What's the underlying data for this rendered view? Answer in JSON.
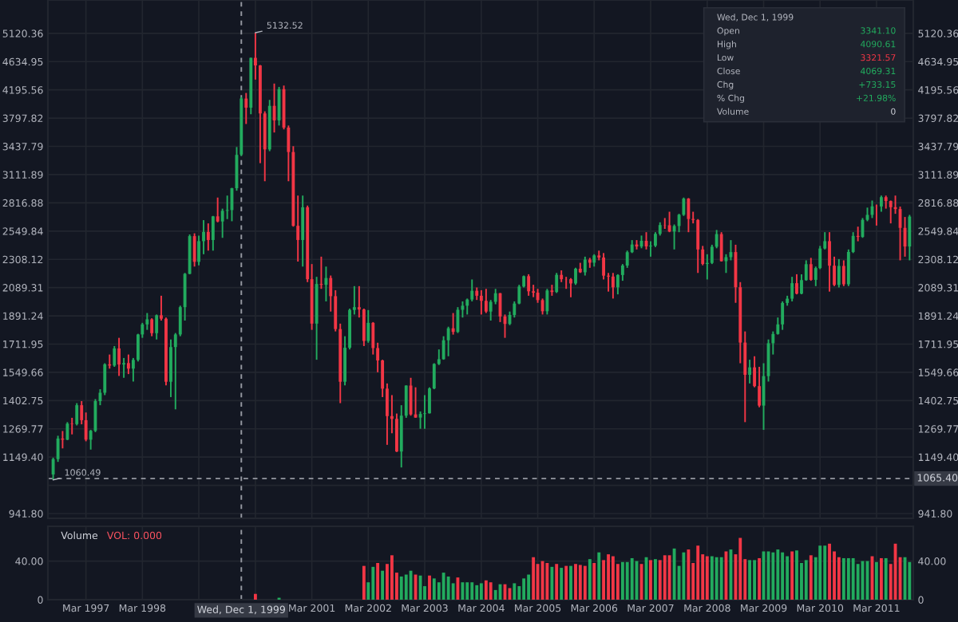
{
  "chart_data": [
    {
      "type": "candlestick",
      "log": true,
      "grid": true,
      "tick_labels": "y",
      "x": [
        "1996-08",
        "1996-09",
        "1996-10",
        "1996-11",
        "1996-12",
        "1997-01",
        "1997-02",
        "1997-03",
        "1997-04",
        "1997-05",
        "1997-06",
        "1997-07",
        "1997-08",
        "1997-09",
        "1997-10",
        "1997-11",
        "1997-12",
        "1998-01",
        "1998-02",
        "1998-03",
        "1998-04",
        "1998-05",
        "1998-06",
        "1998-07",
        "1998-08",
        "1998-09",
        "1998-10",
        "1998-11",
        "1998-12",
        "1999-01",
        "1999-02",
        "1999-03",
        "1999-04",
        "1999-05",
        "1999-06",
        "1999-07",
        "1999-08",
        "1999-09",
        "1999-10",
        "1999-11",
        "1999-12",
        "2000-01",
        "2000-02",
        "2000-03",
        "2000-04",
        "2000-05",
        "2000-06",
        "2000-07",
        "2000-08",
        "2000-09",
        "2000-10",
        "2000-11",
        "2000-12",
        "2001-01",
        "2001-02",
        "2001-03",
        "2001-04",
        "2001-05",
        "2001-06",
        "2001-07",
        "2001-08",
        "2001-09",
        "2001-10",
        "2001-11",
        "2001-12",
        "2002-01",
        "2002-02",
        "2002-03",
        "2002-04",
        "2002-05",
        "2002-06",
        "2002-07",
        "2002-08",
        "2002-09",
        "2002-10",
        "2002-11",
        "2002-12",
        "2003-01",
        "2003-02",
        "2003-03",
        "2003-04",
        "2003-05",
        "2003-06",
        "2003-07",
        "2003-08",
        "2003-09",
        "2003-10",
        "2003-11",
        "2003-12",
        "2004-01",
        "2004-02",
        "2004-03",
        "2004-04",
        "2004-05",
        "2004-06",
        "2004-07",
        "2004-08",
        "2004-09",
        "2004-10",
        "2004-11",
        "2004-12",
        "2005-01",
        "2005-02",
        "2005-03",
        "2005-04",
        "2005-05",
        "2005-06",
        "2005-07",
        "2005-08",
        "2005-09",
        "2005-10",
        "2005-11",
        "2005-12",
        "2006-01",
        "2006-02",
        "2006-03",
        "2006-04",
        "2006-05",
        "2006-06",
        "2006-07",
        "2006-08",
        "2006-09",
        "2006-10",
        "2006-11",
        "2006-12",
        "2007-01",
        "2007-02",
        "2007-03",
        "2007-04",
        "2007-05",
        "2007-06",
        "2007-07",
        "2007-08",
        "2007-09",
        "2007-10",
        "2007-11",
        "2007-12",
        "2008-01",
        "2008-02",
        "2008-03",
        "2008-04",
        "2008-05",
        "2008-06",
        "2008-07",
        "2008-08",
        "2008-09",
        "2008-10",
        "2008-11",
        "2008-12",
        "2009-01",
        "2009-02",
        "2009-03",
        "2009-04",
        "2009-05",
        "2009-06",
        "2009-07",
        "2009-08",
        "2009-09",
        "2009-10",
        "2009-11",
        "2009-12",
        "2010-01",
        "2010-02",
        "2010-03",
        "2010-04",
        "2010-05",
        "2010-06",
        "2010-07",
        "2010-08",
        "2010-09",
        "2010-10",
        "2010-11",
        "2010-12",
        "2011-01",
        "2011-02",
        "2011-03",
        "2011-04",
        "2011-05",
        "2011-06",
        "2011-07",
        "2011-08",
        "2011-09",
        "2011-10"
      ],
      "ohlc": [
        [
          1081,
          1147,
          1060.49,
          1141
        ],
        [
          1141,
          1239,
          1130,
          1227
        ],
        [
          1227,
          1260,
          1185,
          1222
        ],
        [
          1222,
          1300,
          1220,
          1293
        ],
        [
          1293,
          1320,
          1245,
          1291
        ],
        [
          1291,
          1390,
          1285,
          1380
        ],
        [
          1380,
          1400,
          1290,
          1309
        ],
        [
          1309,
          1345,
          1215,
          1222
        ],
        [
          1222,
          1265,
          1180,
          1261
        ],
        [
          1261,
          1410,
          1255,
          1400
        ],
        [
          1400,
          1460,
          1380,
          1442
        ],
        [
          1442,
          1600,
          1430,
          1594
        ],
        [
          1594,
          1650,
          1570,
          1587
        ],
        [
          1587,
          1700,
          1580,
          1686
        ],
        [
          1686,
          1750,
          1530,
          1593
        ],
        [
          1593,
          1630,
          1520,
          1601
        ],
        [
          1601,
          1650,
          1540,
          1570
        ],
        [
          1570,
          1630,
          1500,
          1619
        ],
        [
          1619,
          1775,
          1610,
          1771
        ],
        [
          1771,
          1845,
          1750,
          1835
        ],
        [
          1835,
          1910,
          1800,
          1868
        ],
        [
          1868,
          1875,
          1760,
          1779
        ],
        [
          1779,
          1900,
          1740,
          1895
        ],
        [
          1895,
          2030,
          1860,
          1872
        ],
        [
          1872,
          1880,
          1480,
          1499
        ],
        [
          1499,
          1740,
          1420,
          1694
        ],
        [
          1694,
          1780,
          1360,
          1771
        ],
        [
          1771,
          1960,
          1760,
          1950
        ],
        [
          1950,
          2200,
          1860,
          2193
        ],
        [
          2193,
          2520,
          2190,
          2505
        ],
        [
          2505,
          2530,
          2250,
          2288
        ],
        [
          2288,
          2510,
          2260,
          2461
        ],
        [
          2461,
          2650,
          2350,
          2542
        ],
        [
          2542,
          2620,
          2380,
          2471
        ],
        [
          2471,
          2690,
          2380,
          2686
        ],
        [
          2686,
          2870,
          2630,
          2638
        ],
        [
          2638,
          2760,
          2490,
          2739
        ],
        [
          2739,
          2890,
          2660,
          2746
        ],
        [
          2746,
          2970,
          2640,
          2966
        ],
        [
          2966,
          3430,
          2940,
          3336
        ],
        [
          3341.1,
          4090.61,
          3321.57,
          4069.31
        ],
        [
          4069,
          4150,
          3720,
          3940
        ],
        [
          3940,
          4700,
          3850,
          4697
        ],
        [
          4697,
          5132.52,
          4350,
          4573
        ],
        [
          4573,
          4580,
          3240,
          3861
        ],
        [
          3861,
          3890,
          3040,
          3401
        ],
        [
          3401,
          4050,
          3380,
          3966
        ],
        [
          3966,
          4290,
          3610,
          3767
        ],
        [
          3767,
          4240,
          3700,
          4206
        ],
        [
          4206,
          4260,
          3650,
          3673
        ],
        [
          3673,
          3700,
          3040,
          3370
        ],
        [
          3370,
          3440,
          2590,
          2598
        ],
        [
          2598,
          2890,
          2290,
          2471
        ],
        [
          2471,
          2890,
          2250,
          2773
        ],
        [
          2773,
          2790,
          2130,
          2152
        ],
        [
          2152,
          2270,
          1800,
          1840
        ],
        [
          1840,
          2170,
          1620,
          2116
        ],
        [
          2116,
          2330,
          2080,
          2110
        ],
        [
          2110,
          2250,
          1990,
          2161
        ],
        [
          2161,
          2180,
          1920,
          2027
        ],
        [
          2027,
          2070,
          1790,
          1805
        ],
        [
          1805,
          1840,
          1390,
          1499
        ],
        [
          1499,
          1760,
          1480,
          1690
        ],
        [
          1690,
          1940,
          1680,
          1931
        ],
        [
          1931,
          2100,
          1900,
          1950
        ],
        [
          1950,
          2100,
          1880,
          1934
        ],
        [
          1934,
          1940,
          1700,
          1731
        ],
        [
          1731,
          1930,
          1720,
          1845
        ],
        [
          1845,
          1850,
          1650,
          1688
        ],
        [
          1688,
          1720,
          1550,
          1616
        ],
        [
          1616,
          1620,
          1420,
          1463
        ],
        [
          1463,
          1490,
          1200,
          1328
        ],
        [
          1328,
          1430,
          1250,
          1315
        ],
        [
          1315,
          1340,
          1170,
          1172
        ],
        [
          1172,
          1380,
          1108,
          1330
        ],
        [
          1330,
          1480,
          1320,
          1479
        ],
        [
          1479,
          1520,
          1330,
          1336
        ],
        [
          1336,
          1470,
          1320,
          1321
        ],
        [
          1321,
          1350,
          1270,
          1338
        ],
        [
          1338,
          1430,
          1270,
          1341
        ],
        [
          1341,
          1470,
          1340,
          1464
        ],
        [
          1464,
          1600,
          1460,
          1596
        ],
        [
          1596,
          1680,
          1590,
          1623
        ],
        [
          1623,
          1760,
          1620,
          1735
        ],
        [
          1735,
          1820,
          1640,
          1810
        ],
        [
          1810,
          1910,
          1770,
          1787
        ],
        [
          1787,
          1950,
          1780,
          1932
        ],
        [
          1932,
          1990,
          1880,
          1960
        ],
        [
          1960,
          2010,
          1900,
          2003
        ],
        [
          2003,
          2150,
          1990,
          2066
        ],
        [
          2066,
          2090,
          2000,
          2030
        ],
        [
          2030,
          2070,
          1900,
          1994
        ],
        [
          1994,
          2080,
          1910,
          1920
        ],
        [
          1920,
          2000,
          1860,
          1987
        ],
        [
          1987,
          2080,
          1970,
          2048
        ],
        [
          2048,
          2050,
          1850,
          1887
        ],
        [
          1887,
          1900,
          1750,
          1838
        ],
        [
          1838,
          1920,
          1830,
          1897
        ],
        [
          1897,
          1990,
          1880,
          1975
        ],
        [
          1975,
          2110,
          1970,
          2097
        ],
        [
          2097,
          2180,
          2090,
          2175
        ],
        [
          2175,
          2190,
          2030,
          2062
        ],
        [
          2062,
          2110,
          2020,
          2052
        ],
        [
          2052,
          2080,
          1980,
          1999
        ],
        [
          1999,
          2010,
          1900,
          1922
        ],
        [
          1922,
          2080,
          1900,
          2068
        ],
        [
          2068,
          2110,
          2030,
          2057
        ],
        [
          2057,
          2200,
          2050,
          2185
        ],
        [
          2185,
          2220,
          2130,
          2152
        ],
        [
          2152,
          2170,
          2080,
          2151
        ],
        [
          2152,
          2160,
          2020,
          2120
        ],
        [
          2120,
          2240,
          2110,
          2233
        ],
        [
          2233,
          2280,
          2200,
          2205
        ],
        [
          2205,
          2330,
          2180,
          2306
        ],
        [
          2306,
          2320,
          2240,
          2281
        ],
        [
          2281,
          2350,
          2250,
          2340
        ],
        [
          2340,
          2380,
          2300,
          2323
        ],
        [
          2323,
          2360,
          2150,
          2179
        ],
        [
          2179,
          2200,
          2060,
          2172
        ],
        [
          2172,
          2200,
          2010,
          2091
        ],
        [
          2091,
          2190,
          2040,
          2184
        ],
        [
          2184,
          2270,
          2140,
          2258
        ],
        [
          2258,
          2380,
          2240,
          2367
        ],
        [
          2367,
          2470,
          2360,
          2432
        ],
        [
          2432,
          2470,
          2390,
          2415
        ],
        [
          2415,
          2510,
          2400,
          2464
        ],
        [
          2464,
          2540,
          2390,
          2416
        ],
        [
          2416,
          2460,
          2330,
          2422
        ],
        [
          2422,
          2540,
          2410,
          2525
        ],
        [
          2525,
          2630,
          2510,
          2605
        ],
        [
          2605,
          2670,
          2570,
          2603
        ],
        [
          2603,
          2730,
          2540,
          2546
        ],
        [
          2546,
          2610,
          2390,
          2596
        ],
        [
          2596,
          2710,
          2540,
          2701
        ],
        [
          2701,
          2870,
          2690,
          2859
        ],
        [
          2859,
          2865,
          2540,
          2661
        ],
        [
          2661,
          2730,
          2620,
          2652
        ],
        [
          2652,
          2660,
          2200,
          2390
        ],
        [
          2390,
          2420,
          2260,
          2271
        ],
        [
          2271,
          2350,
          2150,
          2279
        ],
        [
          2279,
          2430,
          2270,
          2413
        ],
        [
          2413,
          2560,
          2400,
          2523
        ],
        [
          2523,
          2540,
          2290,
          2293
        ],
        [
          2293,
          2350,
          2200,
          2326
        ],
        [
          2326,
          2470,
          2300,
          2368
        ],
        [
          2368,
          2430,
          1980,
          2092
        ],
        [
          2092,
          2130,
          1600,
          1721
        ],
        [
          1721,
          1790,
          1300,
          1536
        ],
        [
          1536,
          1620,
          1490,
          1577
        ],
        [
          1577,
          1640,
          1470,
          1476
        ],
        [
          1476,
          1580,
          1370,
          1378
        ],
        [
          1378,
          1600,
          1265,
          1529
        ],
        [
          1529,
          1740,
          1500,
          1717
        ],
        [
          1717,
          1790,
          1650,
          1774
        ],
        [
          1774,
          1880,
          1770,
          1835
        ],
        [
          1835,
          1990,
          1800,
          1979
        ],
        [
          1979,
          2030,
          1960,
          2009
        ],
        [
          2009,
          2170,
          1990,
          2122
        ],
        [
          2122,
          2190,
          2040,
          2045
        ],
        [
          2045,
          2190,
          2040,
          2145
        ],
        [
          2145,
          2300,
          2140,
          2269
        ],
        [
          2269,
          2320,
          2140,
          2147
        ],
        [
          2147,
          2250,
          2100,
          2238
        ],
        [
          2238,
          2420,
          2230,
          2398
        ],
        [
          2398,
          2540,
          2390,
          2461
        ],
        [
          2461,
          2540,
          2060,
          2257
        ],
        [
          2257,
          2330,
          2100,
          2109
        ],
        [
          2109,
          2310,
          2090,
          2255
        ],
        [
          2255,
          2300,
          2100,
          2114
        ],
        [
          2114,
          2390,
          2100,
          2369
        ],
        [
          2369,
          2540,
          2360,
          2507
        ],
        [
          2507,
          2590,
          2460,
          2498
        ],
        [
          2498,
          2670,
          2490,
          2653
        ],
        [
          2653,
          2770,
          2640,
          2700
        ],
        [
          2700,
          2840,
          2670,
          2782
        ],
        [
          2782,
          2800,
          2600,
          2781
        ],
        [
          2781,
          2890,
          2730,
          2874
        ],
        [
          2874,
          2890,
          2760,
          2835
        ],
        [
          2835,
          2840,
          2620,
          2774
        ],
        [
          2774,
          2890,
          2710,
          2756
        ],
        [
          2756,
          2780,
          2300,
          2579
        ],
        [
          2579,
          2680,
          2330,
          2415
        ],
        [
          2415,
          2700,
          2300,
          2684
        ]
      ],
      "xlim": [
        "1996-06-28",
        "2011-10-25"
      ],
      "ylim": [
        926,
        5760
      ],
      "yticks": [
        {
          "value": 941.8,
          "label": "941.80"
        },
        {
          "value": 1040.4,
          "label": null
        },
        {
          "value": 1149.4,
          "label": "1149.40"
        },
        {
          "value": 1269.77,
          "label": "1269.77"
        },
        {
          "value": 1402.75,
          "label": "1402.75"
        },
        {
          "value": 1549.66,
          "label": "1549.66"
        },
        {
          "value": 1711.95,
          "label": "1711.95"
        },
        {
          "value": 1891.24,
          "label": "1891.24"
        },
        {
          "value": 2089.31,
          "label": "2089.31"
        },
        {
          "value": 2308.12,
          "label": "2308.12"
        },
        {
          "value": 2549.84,
          "label": "2549.84"
        },
        {
          "value": 2816.88,
          "label": "2816.88"
        },
        {
          "value": 3111.89,
          "label": "3111.89"
        },
        {
          "value": 3437.79,
          "label": "3437.79"
        },
        {
          "value": 3797.82,
          "label": "3797.82"
        },
        {
          "value": 4195.56,
          "label": "4195.56"
        },
        {
          "value": 4634.95,
          "label": "4634.95"
        },
        {
          "value": 5120.36,
          "label": "5120.36"
        }
      ],
      "xticks": [
        {
          "value": "1997-03",
          "label": null
        },
        {
          "value": "1998-03",
          "label": null
        },
        {
          "value": "1999-03",
          "label": null
        },
        {
          "value": "2000-03",
          "label": null
        },
        {
          "value": "2001-03",
          "label": null
        },
        {
          "value": "2002-03",
          "label": null
        },
        {
          "value": "2003-03",
          "label": null
        },
        {
          "value": "2004-03",
          "label": null
        },
        {
          "value": "2005-03",
          "label": null
        },
        {
          "value": "2006-03",
          "label": null
        },
        {
          "value": "2007-03",
          "label": null
        },
        {
          "value": "2008-03",
          "label": null
        },
        {
          "value": "2009-03",
          "label": null
        },
        {
          "value": "2010-03",
          "label": null
        },
        {
          "value": "2011-03",
          "label": null
        }
      ],
      "ref_lines": [
        {
          "axis": "x",
          "value": "1999-12-01",
          "line_style": "dashed"
        },
        {
          "axis": "y",
          "value": 1065.4,
          "label": "1065.40",
          "line_style": "dashed"
        }
      ],
      "annotations": [
        {
          "text": "5132.52",
          "x": "2000-03",
          "y": 5132.52
        },
        {
          "text": "1060.49",
          "x": "1996-08",
          "y": 1060.49
        },
        "Wed, Dec 1, 1999",
        "Open",
        "3341.10",
        "High",
        "4090.61",
        "Low",
        "3321.57",
        "Close",
        "4069.31",
        "Chg",
        "+733.15",
        "% Chg",
        "+21.98%",
        "Volume",
        "0"
      ]
    },
    {
      "type": "bar",
      "grid": true,
      "title": "Volume",
      "subtitle": "VOL: 0.000",
      "x": [
        "2000-03",
        "2000-08",
        "2002-02",
        "2002-03",
        "2002-04",
        "2002-05",
        "2002-06",
        "2002-07",
        "2002-08",
        "2002-09",
        "2002-10",
        "2002-11",
        "2002-12",
        "2003-01",
        "2003-02",
        "2003-03",
        "2003-04",
        "2003-05",
        "2003-06",
        "2003-07",
        "2003-08",
        "2003-09",
        "2003-10",
        "2003-11",
        "2003-12",
        "2004-01",
        "2004-02",
        "2004-03",
        "2004-04",
        "2004-05",
        "2004-06",
        "2004-07",
        "2004-08",
        "2004-09",
        "2004-10",
        "2004-11",
        "2004-12",
        "2005-01",
        "2005-02",
        "2005-03",
        "2005-04",
        "2005-05",
        "2005-06",
        "2005-07",
        "2005-08",
        "2005-09",
        "2005-10",
        "2005-11",
        "2005-12",
        "2006-01",
        "2006-02",
        "2006-03",
        "2006-04",
        "2006-05",
        "2006-06",
        "2006-07",
        "2006-08",
        "2006-09",
        "2006-10",
        "2006-11",
        "2006-12",
        "2007-01",
        "2007-02",
        "2007-03",
        "2007-04",
        "2007-05",
        "2007-06",
        "2007-07",
        "2007-08",
        "2007-09",
        "2007-10",
        "2007-11",
        "2007-12",
        "2008-01",
        "2008-02",
        "2008-03",
        "2008-04",
        "2008-05",
        "2008-06",
        "2008-07",
        "2008-08",
        "2008-09",
        "2008-10",
        "2008-11",
        "2008-12",
        "2009-01",
        "2009-02",
        "2009-03",
        "2009-04",
        "2009-05",
        "2009-06",
        "2009-07",
        "2009-08",
        "2009-09",
        "2009-10",
        "2009-11",
        "2009-12",
        "2010-01",
        "2010-02",
        "2010-03",
        "2010-04",
        "2010-05",
        "2010-06",
        "2010-07",
        "2010-08",
        "2010-09",
        "2010-10",
        "2010-11",
        "2010-12",
        "2011-01",
        "2011-02",
        "2011-03",
        "2011-04",
        "2011-05",
        "2011-06",
        "2011-07",
        "2011-08",
        "2011-09",
        "2011-10"
      ],
      "values": [
        6,
        2,
        35,
        18,
        34,
        38,
        30,
        37,
        46,
        28,
        24,
        26,
        30,
        26,
        25,
        14,
        25,
        22,
        18,
        28,
        24,
        17,
        23,
        18,
        18,
        18,
        15,
        17,
        20,
        18,
        10,
        16,
        16,
        12,
        17,
        14,
        22,
        26,
        44,
        37,
        40,
        38,
        34,
        37,
        33,
        35,
        35,
        37,
        36,
        35,
        42,
        38,
        49,
        41,
        47,
        45,
        37,
        39,
        39,
        43,
        40,
        37,
        44,
        41,
        42,
        41,
        46,
        46,
        53,
        35,
        49,
        52,
        38,
        56,
        47,
        45,
        45,
        44,
        44,
        50,
        52,
        47,
        64,
        42,
        41,
        41,
        43,
        50,
        50,
        49,
        52,
        49,
        45,
        50,
        51,
        38,
        41,
        46,
        44,
        56,
        56,
        58,
        50,
        44,
        43,
        43,
        43,
        37,
        40,
        40,
        45,
        39,
        43,
        43,
        37,
        58,
        44,
        44,
        39
      ],
      "colors": [
        "#f23645",
        "#22ab5e",
        "#f23645",
        "#22ab5e",
        "#22ab5e",
        "#f23645",
        "#22ab5e",
        "#f23645",
        "#f23645",
        "#f23645",
        "#22ab5e",
        "#22ab5e",
        "#22ab5e",
        "#f23645",
        "#22ab5e",
        "#22ab5e",
        "#f23645",
        "#22ab5e",
        "#22ab5e",
        "#22ab5e",
        "#22ab5e",
        "#22ab5e",
        "#f23645",
        "#22ab5e",
        "#22ab5e",
        "#22ab5e",
        "#22ab5e",
        "#22ab5e",
        "#f23645",
        "#f23645",
        "#22ab5e",
        "#22ab5e",
        "#f23645",
        "#f23645",
        "#22ab5e",
        "#22ab5e",
        "#22ab5e",
        "#22ab5e",
        "#f23645",
        "#f23645",
        "#f23645",
        "#f23645",
        "#22ab5e",
        "#f23645",
        "#22ab5e",
        "#f23645",
        "#22ab5e",
        "#f23645",
        "#f23645",
        "#f23645",
        "#22ab5e",
        "#f23645",
        "#22ab5e",
        "#f23645",
        "#f23645",
        "#f23645",
        "#f23645",
        "#22ab5e",
        "#22ab5e",
        "#22ab5e",
        "#22ab5e",
        "#f23645",
        "#22ab5e",
        "#f23645",
        "#22ab5e",
        "#f23645",
        "#f23645",
        "#f23645",
        "#22ab5e",
        "#22ab5e",
        "#22ab5e",
        "#f23645",
        "#f23645",
        "#f23645",
        "#f23645",
        "#f23645",
        "#22ab5e",
        "#22ab5e",
        "#22ab5e",
        "#f23645",
        "#22ab5e",
        "#f23645",
        "#f23645",
        "#f23645",
        "#22ab5e",
        "#22ab5e",
        "#f23645",
        "#22ab5e",
        "#22ab5e",
        "#22ab5e",
        "#22ab5e",
        "#22ab5e",
        "#22ab5e",
        "#f23645",
        "#22ab5e",
        "#22ab5e",
        "#22ab5e",
        "#f23645",
        "#22ab5e",
        "#22ab5e",
        "#22ab5e",
        "#f23645",
        "#f23645",
        "#f23645",
        "#22ab5e",
        "#22ab5e",
        "#22ab5e",
        "#22ab5e",
        "#22ab5e",
        "#22ab5e",
        "#f23645",
        "#22ab5e",
        "#f23645",
        "#22ab5e",
        "#f23645",
        "#f23645",
        "#f23645",
        "#22ab5e",
        "#22ab5e"
      ],
      "xlim": [
        "1996-06-28",
        "2011-10-25"
      ],
      "xticks": [
        {
          "value": "1997-03",
          "label": "Mar 1997"
        },
        {
          "value": "1998-03",
          "label": "Mar 1998"
        },
        {
          "value": "1999-03",
          "label": null
        },
        {
          "value": "2000-03",
          "label": null
        },
        {
          "value": "2001-03",
          "label": "Mar 2001"
        },
        {
          "value": "2002-03",
          "label": "Mar 2002"
        },
        {
          "value": "2003-03",
          "label": "Mar 2003"
        },
        {
          "value": "2004-03",
          "label": "Mar 2004"
        },
        {
          "value": "2005-03",
          "label": "Mar 2005"
        },
        {
          "value": "2006-03",
          "label": "Mar 2006"
        },
        {
          "value": "2007-03",
          "label": "Mar 2007"
        },
        {
          "value": "2008-03",
          "label": "Mar 2008"
        },
        {
          "value": "2009-03",
          "label": "Mar 2009"
        },
        {
          "value": "2010-03",
          "label": "Mar 2010"
        },
        {
          "value": "2011-03",
          "label": "Mar 2011"
        }
      ],
      "ylim": [
        0,
        76
      ],
      "yticks": [
        {
          "value": 0,
          "label": "0"
        },
        {
          "value": 40,
          "label": "40.00"
        }
      ],
      "ref_lines": [
        {
          "axis": "x",
          "value": "1999-12-01",
          "label": "Wed, Dec 1, 1999",
          "line_style": "dashed"
        }
      ]
    }
  ]
}
